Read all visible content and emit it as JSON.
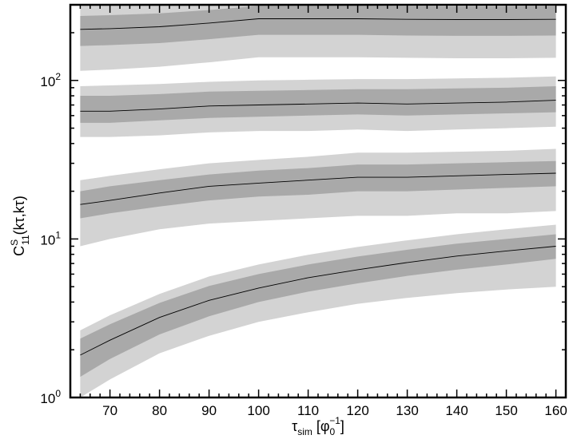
{
  "chart_data": {
    "type": "line",
    "title": "",
    "xlabel": "τsim [φ0−1]",
    "ylabel": "C11S(kτ,kτ)",
    "xlim": [
      62,
      162
    ],
    "ylim": [
      1,
      300
    ],
    "yscale": "log",
    "grid": false,
    "legend": "none",
    "x_ticks": [
      70,
      80,
      90,
      100,
      110,
      120,
      130,
      140,
      150,
      160
    ],
    "x_tick_labels": [
      "70",
      "80",
      "90",
      "100",
      "110",
      "120",
      "130",
      "140",
      "150",
      "160"
    ],
    "y_tick_labels": [
      {
        "base": "10",
        "exp": "0",
        "value": 1
      },
      {
        "base": "10",
        "exp": "1",
        "value": 10
      },
      {
        "base": "10",
        "exp": "2",
        "value": 100
      }
    ],
    "x": [
      64,
      70,
      80,
      90,
      100,
      110,
      120,
      130,
      140,
      150,
      160
    ],
    "series": [
      {
        "mean": [
          210,
          212,
          218,
          230,
          245,
          245,
          245,
          243,
          242,
          242,
          243
        ],
        "inner_lo": [
          165,
          167,
          172,
          182,
          194,
          194,
          194,
          192,
          191,
          191,
          192
        ],
        "inner_hi": [
          255,
          258,
          265,
          278,
          295,
          295,
          295,
          293,
          292,
          292,
          293
        ],
        "outer_lo": [
          115,
          117,
          122,
          130,
          140,
          140,
          140,
          139,
          138,
          138,
          139
        ],
        "outer_hi": [
          300,
          305,
          312,
          325,
          340,
          340,
          340,
          338,
          337,
          337,
          338
        ]
      },
      {
        "mean": [
          64,
          64,
          66,
          69,
          70,
          71,
          72,
          71,
          72,
          73,
          75
        ],
        "inner_lo": [
          54,
          54,
          56,
          58,
          59,
          60,
          61,
          60,
          61,
          62,
          63
        ],
        "inner_hi": [
          80,
          80,
          82,
          85,
          86,
          87,
          88,
          88,
          89,
          90,
          92
        ],
        "outer_lo": [
          44,
          44,
          45,
          47,
          48,
          48,
          49,
          48,
          49,
          50,
          51
        ],
        "outer_hi": [
          92,
          93,
          95,
          98,
          100,
          101,
          102,
          102,
          103,
          104,
          106
        ]
      },
      {
        "mean": [
          16.5,
          17.5,
          19.5,
          21.5,
          22.5,
          23.5,
          24.5,
          24.5,
          25,
          25.5,
          26
        ],
        "inner_lo": [
          13.5,
          14.5,
          16,
          17.5,
          18.5,
          19,
          20,
          20,
          20.5,
          21,
          21.5
        ],
        "inner_hi": [
          20,
          21.5,
          23.5,
          25.5,
          27,
          28,
          29.5,
          29.5,
          30,
          30.5,
          31
        ],
        "outer_lo": [
          9,
          10,
          11.5,
          12.5,
          13,
          13.5,
          14,
          14,
          14.5,
          14.5,
          15
        ],
        "outer_hi": [
          23.5,
          25,
          27.5,
          30,
          31.5,
          33,
          35,
          35,
          35.5,
          36,
          37
        ]
      },
      {
        "mean": [
          1.85,
          2.3,
          3.2,
          4.1,
          4.9,
          5.7,
          6.4,
          7.1,
          7.8,
          8.4,
          9.0
        ],
        "inner_lo": [
          1.35,
          1.75,
          2.5,
          3.25,
          4.0,
          4.65,
          5.25,
          5.85,
          6.4,
          6.9,
          7.5
        ],
        "inner_hi": [
          2.35,
          2.9,
          3.95,
          5.05,
          6.0,
          6.9,
          7.75,
          8.55,
          9.35,
          10.0,
          10.7
        ],
        "outer_lo": [
          1.0,
          1.3,
          1.9,
          2.45,
          3.0,
          3.45,
          3.9,
          4.25,
          4.55,
          4.8,
          5.0
        ],
        "outer_hi": [
          2.65,
          3.3,
          4.5,
          5.8,
          6.9,
          7.95,
          8.9,
          9.8,
          10.7,
          11.5,
          12.3
        ]
      }
    ],
    "colors": {
      "outer_band": "#d3d3d3",
      "inner_band": "#a9a9a9",
      "line": "#000000",
      "axes": "#000000"
    }
  }
}
